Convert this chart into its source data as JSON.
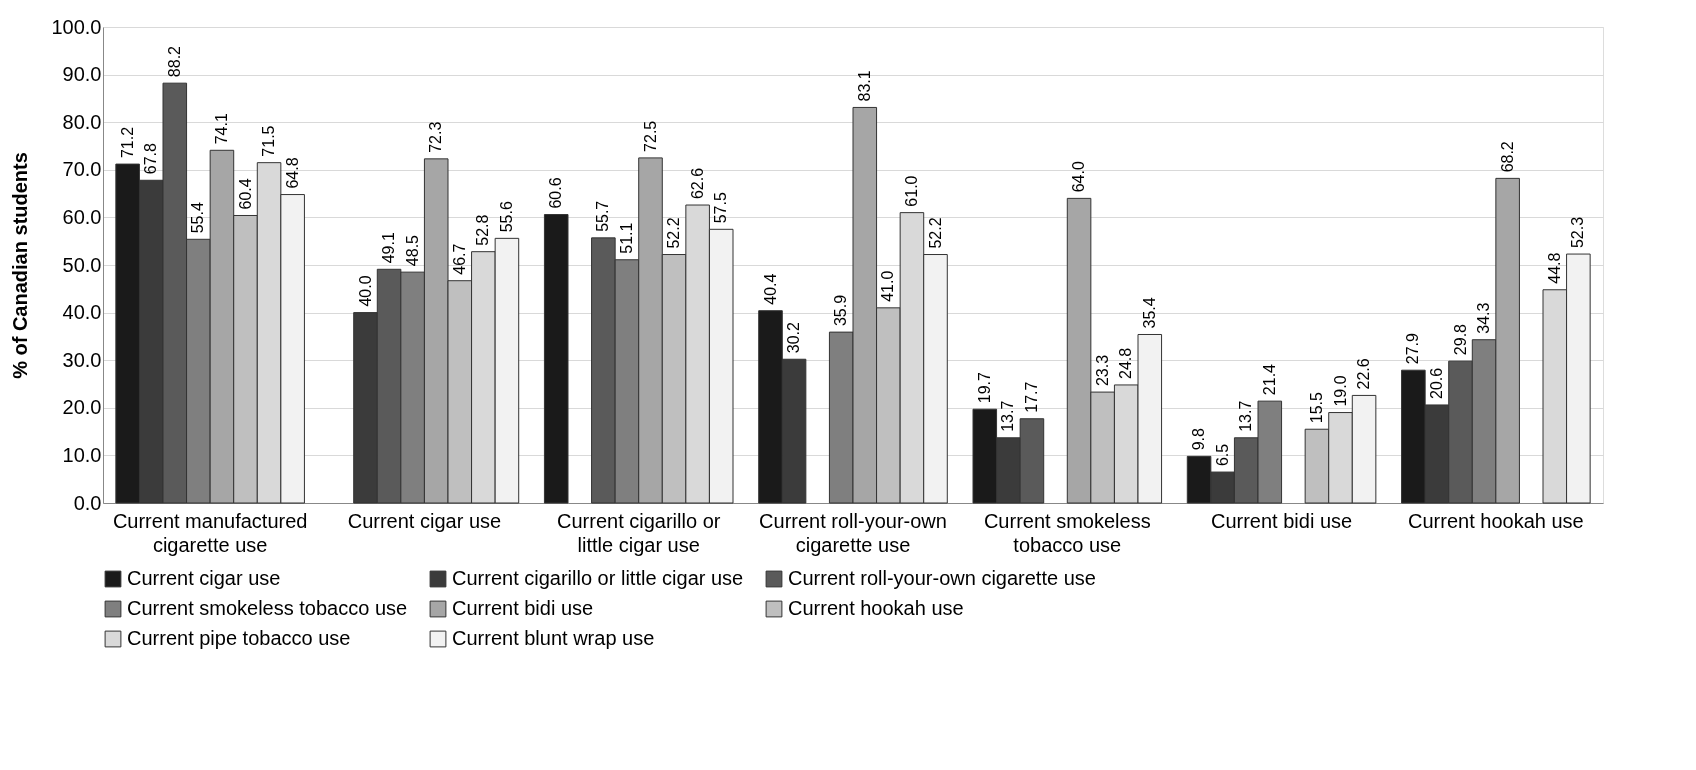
{
  "chart_data": {
    "type": "bar",
    "ylabel": "% of Canadian students",
    "categories": [
      "Current manufactured cigarette use",
      "Current cigar use",
      "Current cigarillo or little cigar use",
      "Current roll-your-own cigarette use",
      "Current smokeless tobacco use",
      "Current bidi use",
      "Current hookah use"
    ],
    "series": [
      {
        "name": "Current cigar use",
        "color": "#1a1a1a",
        "values": [
          71.2,
          null,
          60.6,
          40.4,
          19.7,
          9.8,
          27.9
        ],
        "value_labels": [
          "71.2",
          null,
          "60.6",
          "40.4",
          "19.7",
          "9.8",
          "27.9"
        ]
      },
      {
        "name": "Current cigarillo or little cigar use",
        "color": "#3b3b3b",
        "values": [
          67.8,
          40.0,
          null,
          30.2,
          13.7,
          6.5,
          20.6
        ],
        "value_labels": [
          "67.8",
          "40.0",
          null,
          "30.2",
          "13.7",
          "6.5",
          "20.6"
        ]
      },
      {
        "name": "Current roll-your-own cigarette use",
        "color": "#5a5a5a",
        "values": [
          88.2,
          49.1,
          55.7,
          null,
          17.7,
          13.7,
          29.8
        ],
        "value_labels": [
          "88.2",
          "49.1",
          "55.7",
          null,
          "17.7",
          "13.7",
          "29.8"
        ]
      },
      {
        "name": "Current smokeless tobacco use",
        "color": "#7f7f7f",
        "values": [
          55.4,
          48.5,
          51.1,
          35.9,
          null,
          21.4,
          34.3
        ],
        "value_labels": [
          "55.4",
          "48.5",
          "51.1",
          "35.9",
          null,
          "21.4",
          "34.3"
        ]
      },
      {
        "name": "Current bidi use",
        "color": "#a6a6a6",
        "values": [
          74.1,
          72.3,
          72.5,
          83.1,
          64.0,
          null,
          68.2
        ],
        "value_labels": [
          "74.1",
          "72.3",
          "72.5",
          "83.1",
          "64.0",
          null,
          "68.2"
        ]
      },
      {
        "name": "Current hookah use",
        "color": "#bfbfbf",
        "values": [
          60.4,
          46.7,
          52.2,
          41.0,
          23.3,
          15.5,
          null
        ],
        "value_labels": [
          "60.4",
          "46.7",
          "52.2",
          "41.0",
          "23.3",
          "15.5",
          null
        ]
      },
      {
        "name": "Current pipe tobacco use",
        "color": "#d9d9d9",
        "values": [
          71.5,
          52.8,
          62.6,
          61.0,
          24.8,
          19.0,
          44.8
        ],
        "value_labels": [
          "71.5",
          "52.8",
          "62.6",
          "61.0",
          "24.8",
          "19.0",
          "44.8"
        ]
      },
      {
        "name": "Current blunt wrap use",
        "color": "#f2f2f2",
        "values": [
          64.8,
          55.6,
          57.5,
          52.2,
          35.4,
          22.6,
          52.3
        ],
        "value_labels": [
          "64.8",
          "55.6",
          "57.5",
          "52.2",
          "35.4",
          "22.6",
          "52.3"
        ]
      }
    ],
    "ylim": [
      0,
      100
    ],
    "yticks": [
      {
        "value": 0,
        "label": "0.0"
      },
      {
        "value": 10,
        "label": "10.0"
      },
      {
        "value": 20,
        "label": "20.0"
      },
      {
        "value": 30,
        "label": "30.0"
      },
      {
        "value": 40,
        "label": "40.0"
      },
      {
        "value": 50,
        "label": "50.0"
      },
      {
        "value": 60,
        "label": "60.0"
      },
      {
        "value": 70,
        "label": "70.0"
      },
      {
        "value": 80,
        "label": "80.0"
      },
      {
        "value": 90,
        "label": "90.0"
      },
      {
        "value": 100,
        "label": "100.0"
      }
    ],
    "grid": "y",
    "legend": "bottom"
  }
}
